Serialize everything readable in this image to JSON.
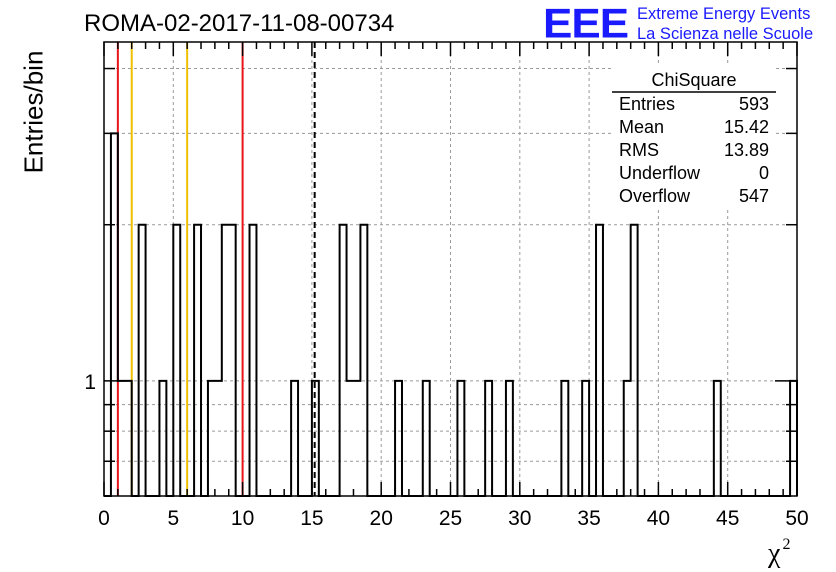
{
  "header": {
    "run_id": "ROMA-02-2017-11-08-00734",
    "logo_mark": "EEE",
    "logo_line1": "Extreme Energy Events",
    "logo_line2": "La Scienza nelle Scuole"
  },
  "colors": {
    "logo": "#1a1aff",
    "red_line": "#e8141c",
    "yellow_line": "#f0c000",
    "grid": "#9a9a9a"
  },
  "chart_data": {
    "type": "histogram",
    "xlabel": "χ",
    "xlabel_sup": "2",
    "ylabel": "Entries/bin",
    "xlim": [
      0,
      50
    ],
    "ylim_log": [
      0.6,
      4.5
    ],
    "y_scale": "log",
    "grid": true,
    "bin_width": 0.5,
    "x_ticks": [
      "0",
      "5",
      "10",
      "15",
      "20",
      "25",
      "30",
      "35",
      "40",
      "45",
      "50"
    ],
    "y_tick_labels": [
      {
        "value": 1,
        "label": "1"
      }
    ],
    "bins": [
      {
        "x": 0.0,
        "count": 0
      },
      {
        "x": 0.5,
        "count": 3
      },
      {
        "x": 1.0,
        "count": 1
      },
      {
        "x": 1.5,
        "count": 1
      },
      {
        "x": 2.0,
        "count": 0
      },
      {
        "x": 2.5,
        "count": 2
      },
      {
        "x": 3.0,
        "count": 0
      },
      {
        "x": 3.5,
        "count": 0
      },
      {
        "x": 4.0,
        "count": 1
      },
      {
        "x": 4.5,
        "count": 0
      },
      {
        "x": 5.0,
        "count": 2
      },
      {
        "x": 5.5,
        "count": 0
      },
      {
        "x": 6.0,
        "count": 0
      },
      {
        "x": 6.5,
        "count": 2
      },
      {
        "x": 7.0,
        "count": 0
      },
      {
        "x": 7.5,
        "count": 1
      },
      {
        "x": 8.0,
        "count": 1
      },
      {
        "x": 8.5,
        "count": 2
      },
      {
        "x": 9.0,
        "count": 2
      },
      {
        "x": 9.5,
        "count": 0
      },
      {
        "x": 10.0,
        "count": 0
      },
      {
        "x": 10.5,
        "count": 2
      },
      {
        "x": 13.5,
        "count": 1
      },
      {
        "x": 15.0,
        "count": 1
      },
      {
        "x": 17.0,
        "count": 2
      },
      {
        "x": 17.5,
        "count": 1
      },
      {
        "x": 18.0,
        "count": 1
      },
      {
        "x": 18.5,
        "count": 2
      },
      {
        "x": 21.0,
        "count": 1
      },
      {
        "x": 23.0,
        "count": 1
      },
      {
        "x": 25.5,
        "count": 1
      },
      {
        "x": 27.5,
        "count": 1
      },
      {
        "x": 29.0,
        "count": 1
      },
      {
        "x": 33.0,
        "count": 1
      },
      {
        "x": 34.5,
        "count": 1
      },
      {
        "x": 35.5,
        "count": 2
      },
      {
        "x": 37.5,
        "count": 1
      },
      {
        "x": 38.0,
        "count": 2
      },
      {
        "x": 44.0,
        "count": 1
      },
      {
        "x": 49.5,
        "count": 1
      }
    ],
    "reference_lines": [
      {
        "x": 1.0,
        "color": "red",
        "style": "solid"
      },
      {
        "x": 2.0,
        "color": "yellow",
        "style": "solid"
      },
      {
        "x": 6.0,
        "color": "yellow",
        "style": "solid"
      },
      {
        "x": 10.0,
        "color": "red",
        "style": "solid"
      },
      {
        "x": 15.2,
        "color": "black",
        "style": "dashed"
      }
    ],
    "stats_box": {
      "title": "ChiSquare",
      "rows": [
        {
          "label": "Entries",
          "value": "593"
        },
        {
          "label": "Mean",
          "value": "15.42"
        },
        {
          "label": "RMS",
          "value": "13.89"
        },
        {
          "label": "Underflow",
          "value": "0"
        },
        {
          "label": "Overflow",
          "value": "547"
        }
      ]
    }
  }
}
